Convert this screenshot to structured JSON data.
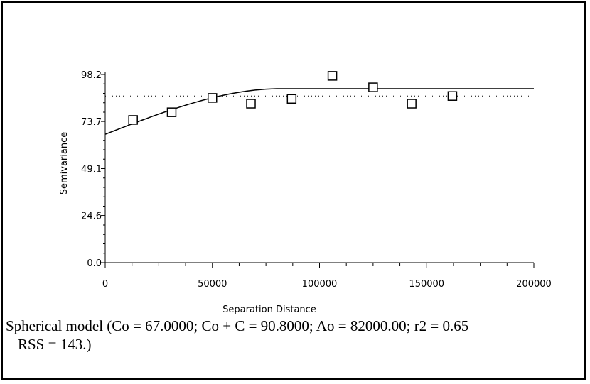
{
  "chart_data": {
    "type": "scatter",
    "xlabel": "Separation Distance",
    "ylabel": "Semivariance",
    "xlim": [
      0,
      200000
    ],
    "ylim": [
      0,
      98.2
    ],
    "x_ticks": [
      0,
      50000,
      100000,
      150000,
      200000
    ],
    "y_ticks": [
      0.0,
      24.6,
      49.1,
      73.7,
      98.2
    ],
    "x_tick_labels": [
      "0",
      "50000",
      "100000",
      "150000",
      "200000"
    ],
    "y_tick_labels": [
      "0.0",
      "24.6",
      "49.1",
      "73.7",
      "98.2"
    ],
    "points": [
      {
        "x": 13000,
        "y": 74.5
      },
      {
        "x": 31000,
        "y": 78.5
      },
      {
        "x": 50000,
        "y": 86.0
      },
      {
        "x": 68000,
        "y": 83.0
      },
      {
        "x": 87000,
        "y": 85.5
      },
      {
        "x": 106000,
        "y": 97.5
      },
      {
        "x": 125000,
        "y": 91.5
      },
      {
        "x": 143000,
        "y": 83.0
      },
      {
        "x": 162000,
        "y": 87.0
      }
    ],
    "model": {
      "type": "spherical",
      "nugget": 67.0,
      "sill": 90.8,
      "range": 82000.0
    },
    "reference_line_y": 87.0
  },
  "caption": {
    "line1": "Spherical model (Co = 67.0000; Co + C = 90.8000; Ao = 82000.00; r2 = 0.65",
    "line2": "RSS = 143.)"
  }
}
